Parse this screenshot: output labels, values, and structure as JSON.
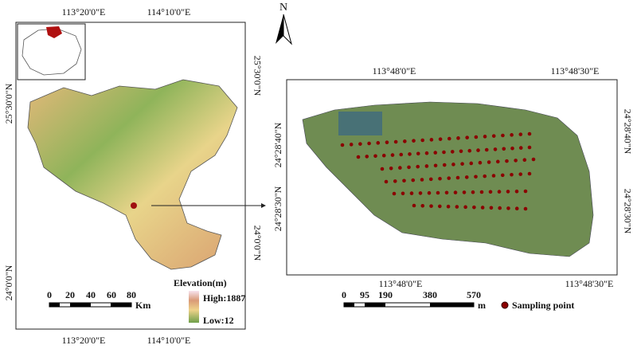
{
  "left_map": {
    "top_labels": [
      "113°20'0\"E",
      "114°10'0\"E"
    ],
    "bottom_labels": [
      "113°20'0\"E",
      "114°10'0\"E"
    ],
    "left_labels": [
      "25°30'0\"N",
      "24°0'0\"N"
    ],
    "right_labels": [
      "25°30'0\"N",
      "24°0'0\"N"
    ],
    "legend": {
      "title": "Elevation(m)",
      "high": "High:1887",
      "low": "Low:12"
    },
    "scale": {
      "ticks": [
        0,
        20,
        40,
        60,
        80
      ],
      "unit": "Km"
    }
  },
  "right_map": {
    "top_labels": [
      "113°48'0\"E",
      "113°48'30\"E"
    ],
    "bottom_labels": [
      "113°48'0\"E",
      "113°48'30\"E"
    ],
    "left_labels": [
      "24°28'40\"N",
      "24°28'30\"N"
    ],
    "right_labels": [
      "24°28'40\"N",
      "24°28'30\"N"
    ],
    "scale": {
      "ticks": [
        0,
        95,
        190,
        380,
        570
      ],
      "unit": "m"
    },
    "legend": "Sampling point"
  },
  "north": "N"
}
